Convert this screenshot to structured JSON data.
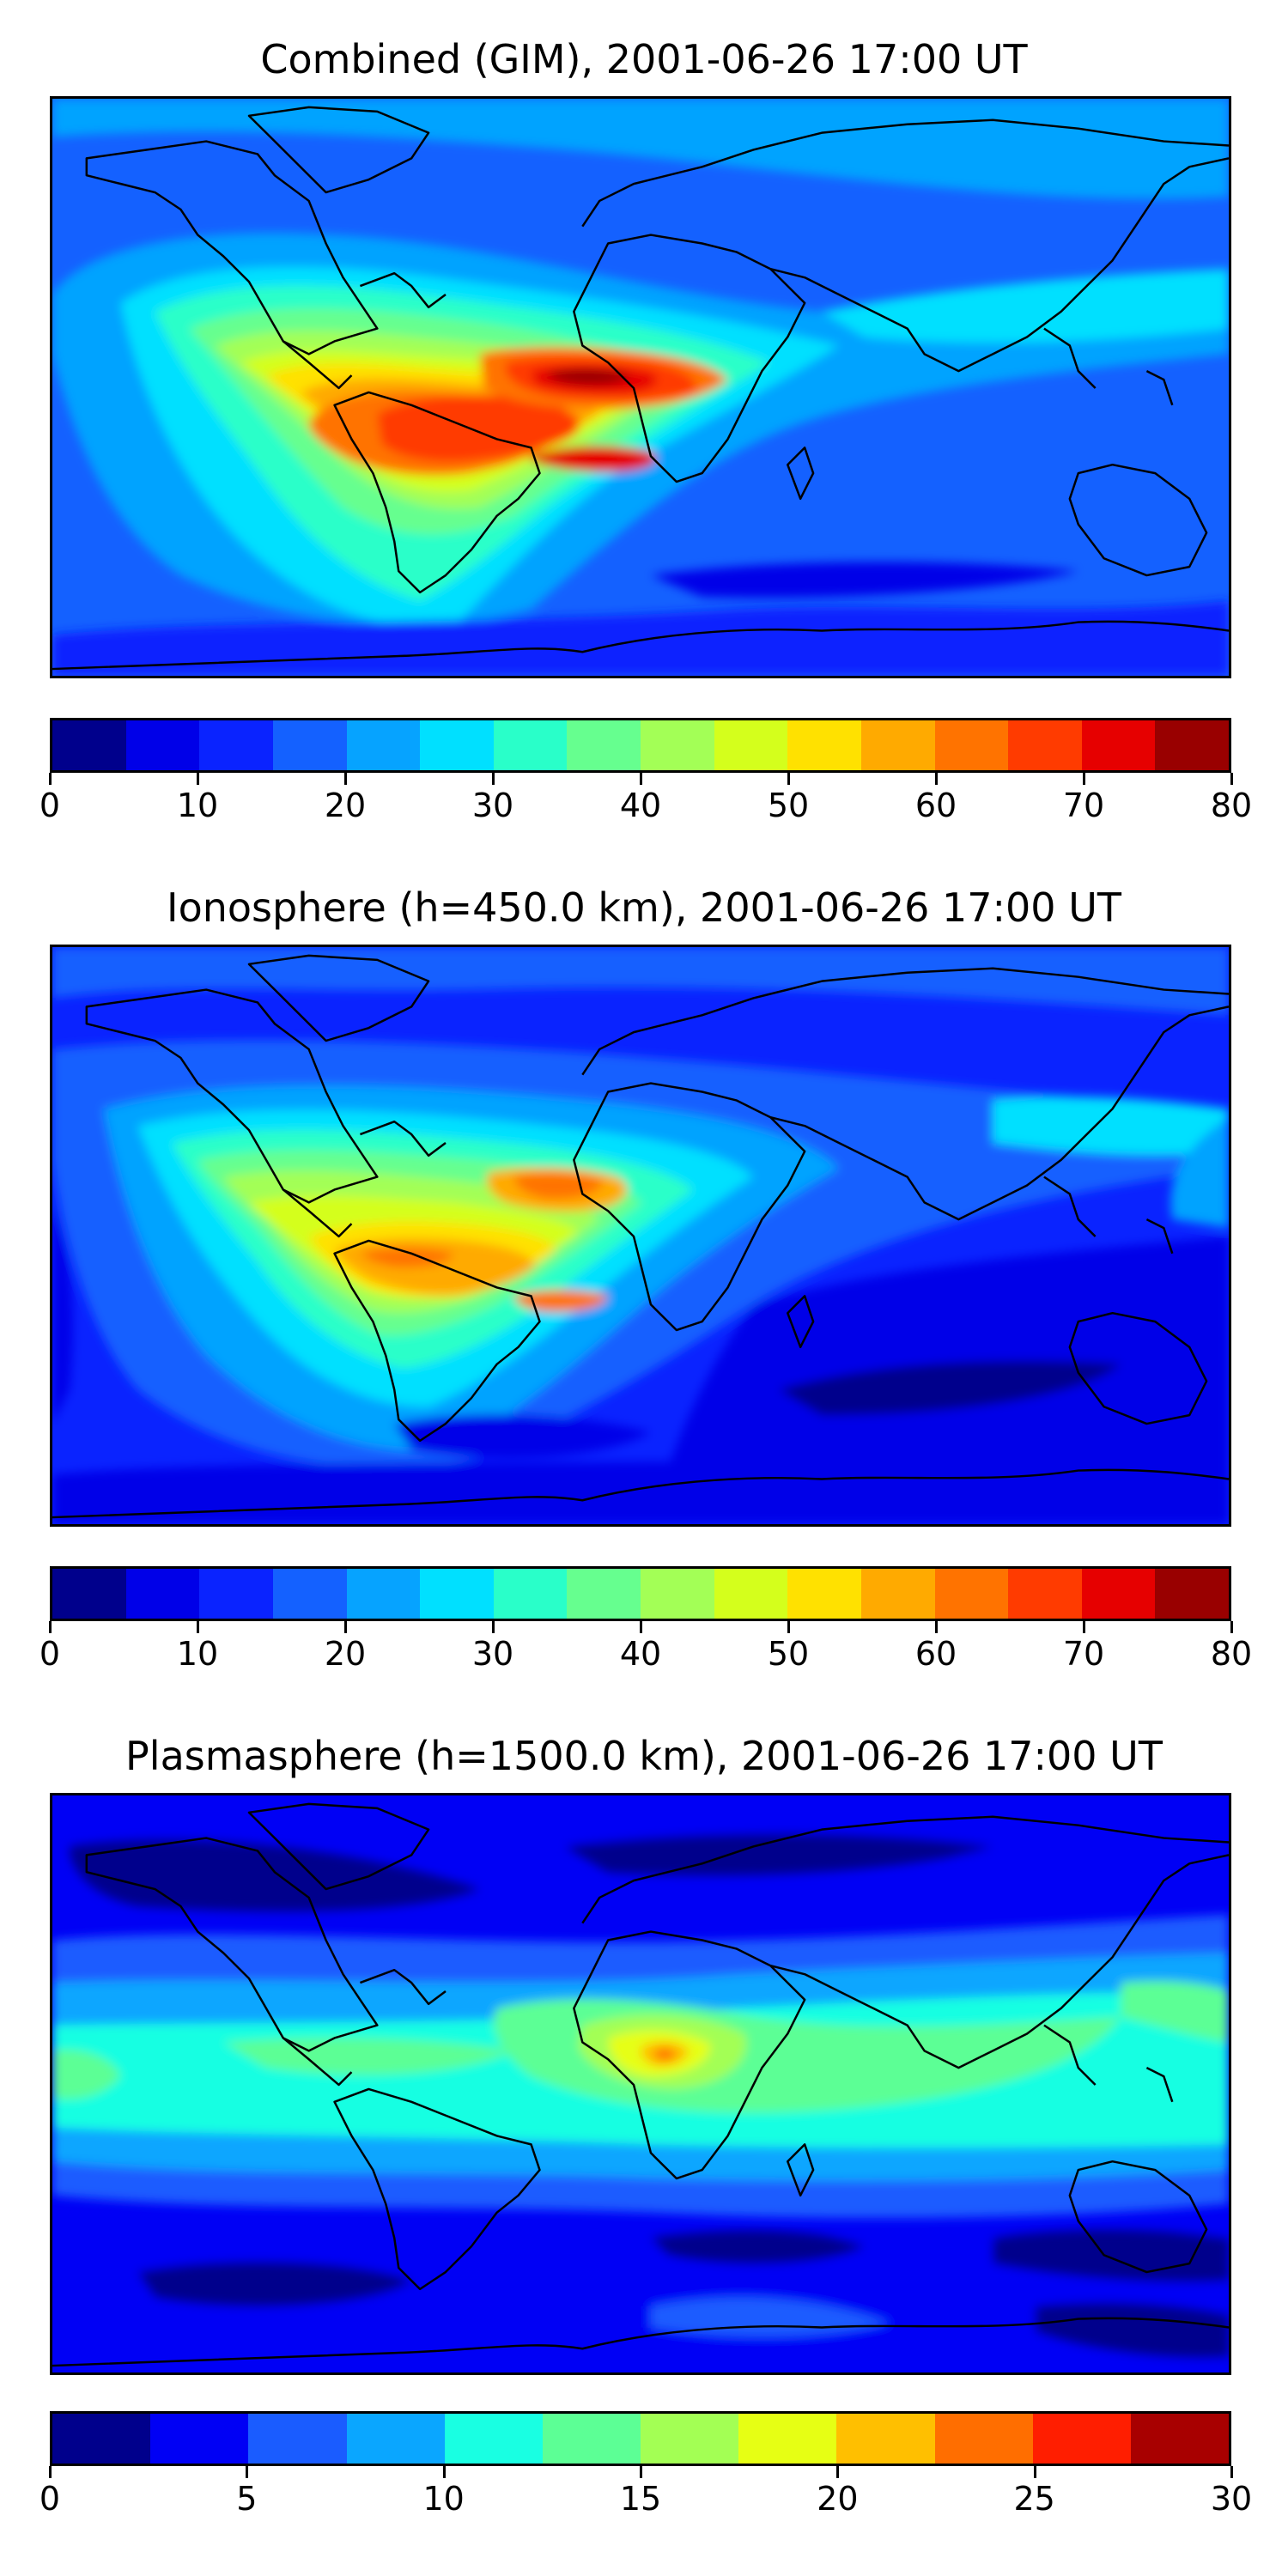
{
  "panels": [
    {
      "title": "Combined (GIM), 2001-06-26 17:00 UT",
      "colorbar": {
        "colors": [
          "#00008c",
          "#0000e8",
          "#0a23ff",
          "#1461ff",
          "#06a3ff",
          "#00e0ff",
          "#29ffc9",
          "#66ff8f",
          "#a3ff56",
          "#d4ff1c",
          "#ffe100",
          "#ffaa00",
          "#ff7300",
          "#ff3b00",
          "#e60000",
          "#990000"
        ],
        "ticks": [
          "0",
          "10",
          "20",
          "30",
          "40",
          "50",
          "60",
          "70",
          "80"
        ],
        "min": 0,
        "max": 80
      }
    },
    {
      "title": "Ionosphere  (h=450.0 km), 2001-06-26 17:00 UT",
      "colorbar": {
        "colors": [
          "#00008c",
          "#0000e8",
          "#0a23ff",
          "#1461ff",
          "#06a3ff",
          "#00e0ff",
          "#29ffc9",
          "#66ff8f",
          "#a3ff56",
          "#d4ff1c",
          "#ffe100",
          "#ffaa00",
          "#ff7300",
          "#ff3b00",
          "#e60000",
          "#990000"
        ],
        "ticks": [
          "0",
          "10",
          "20",
          "30",
          "40",
          "50",
          "60",
          "70",
          "80"
        ],
        "min": 0,
        "max": 80
      }
    },
    {
      "title": "Plasmasphere (h=1500.0 km), 2001-06-26 17:00 UT",
      "colorbar": {
        "colors": [
          "#00008c",
          "#0000f5",
          "#1a5cff",
          "#0aa6ff",
          "#19ffe2",
          "#5cff95",
          "#a3ff54",
          "#e6ff14",
          "#ffbf00",
          "#ff6e00",
          "#ff1e00",
          "#a80000"
        ],
        "ticks": [
          "0",
          "5",
          "10",
          "15",
          "20",
          "25",
          "30"
        ],
        "min": 0,
        "max": 30
      }
    }
  ]
}
